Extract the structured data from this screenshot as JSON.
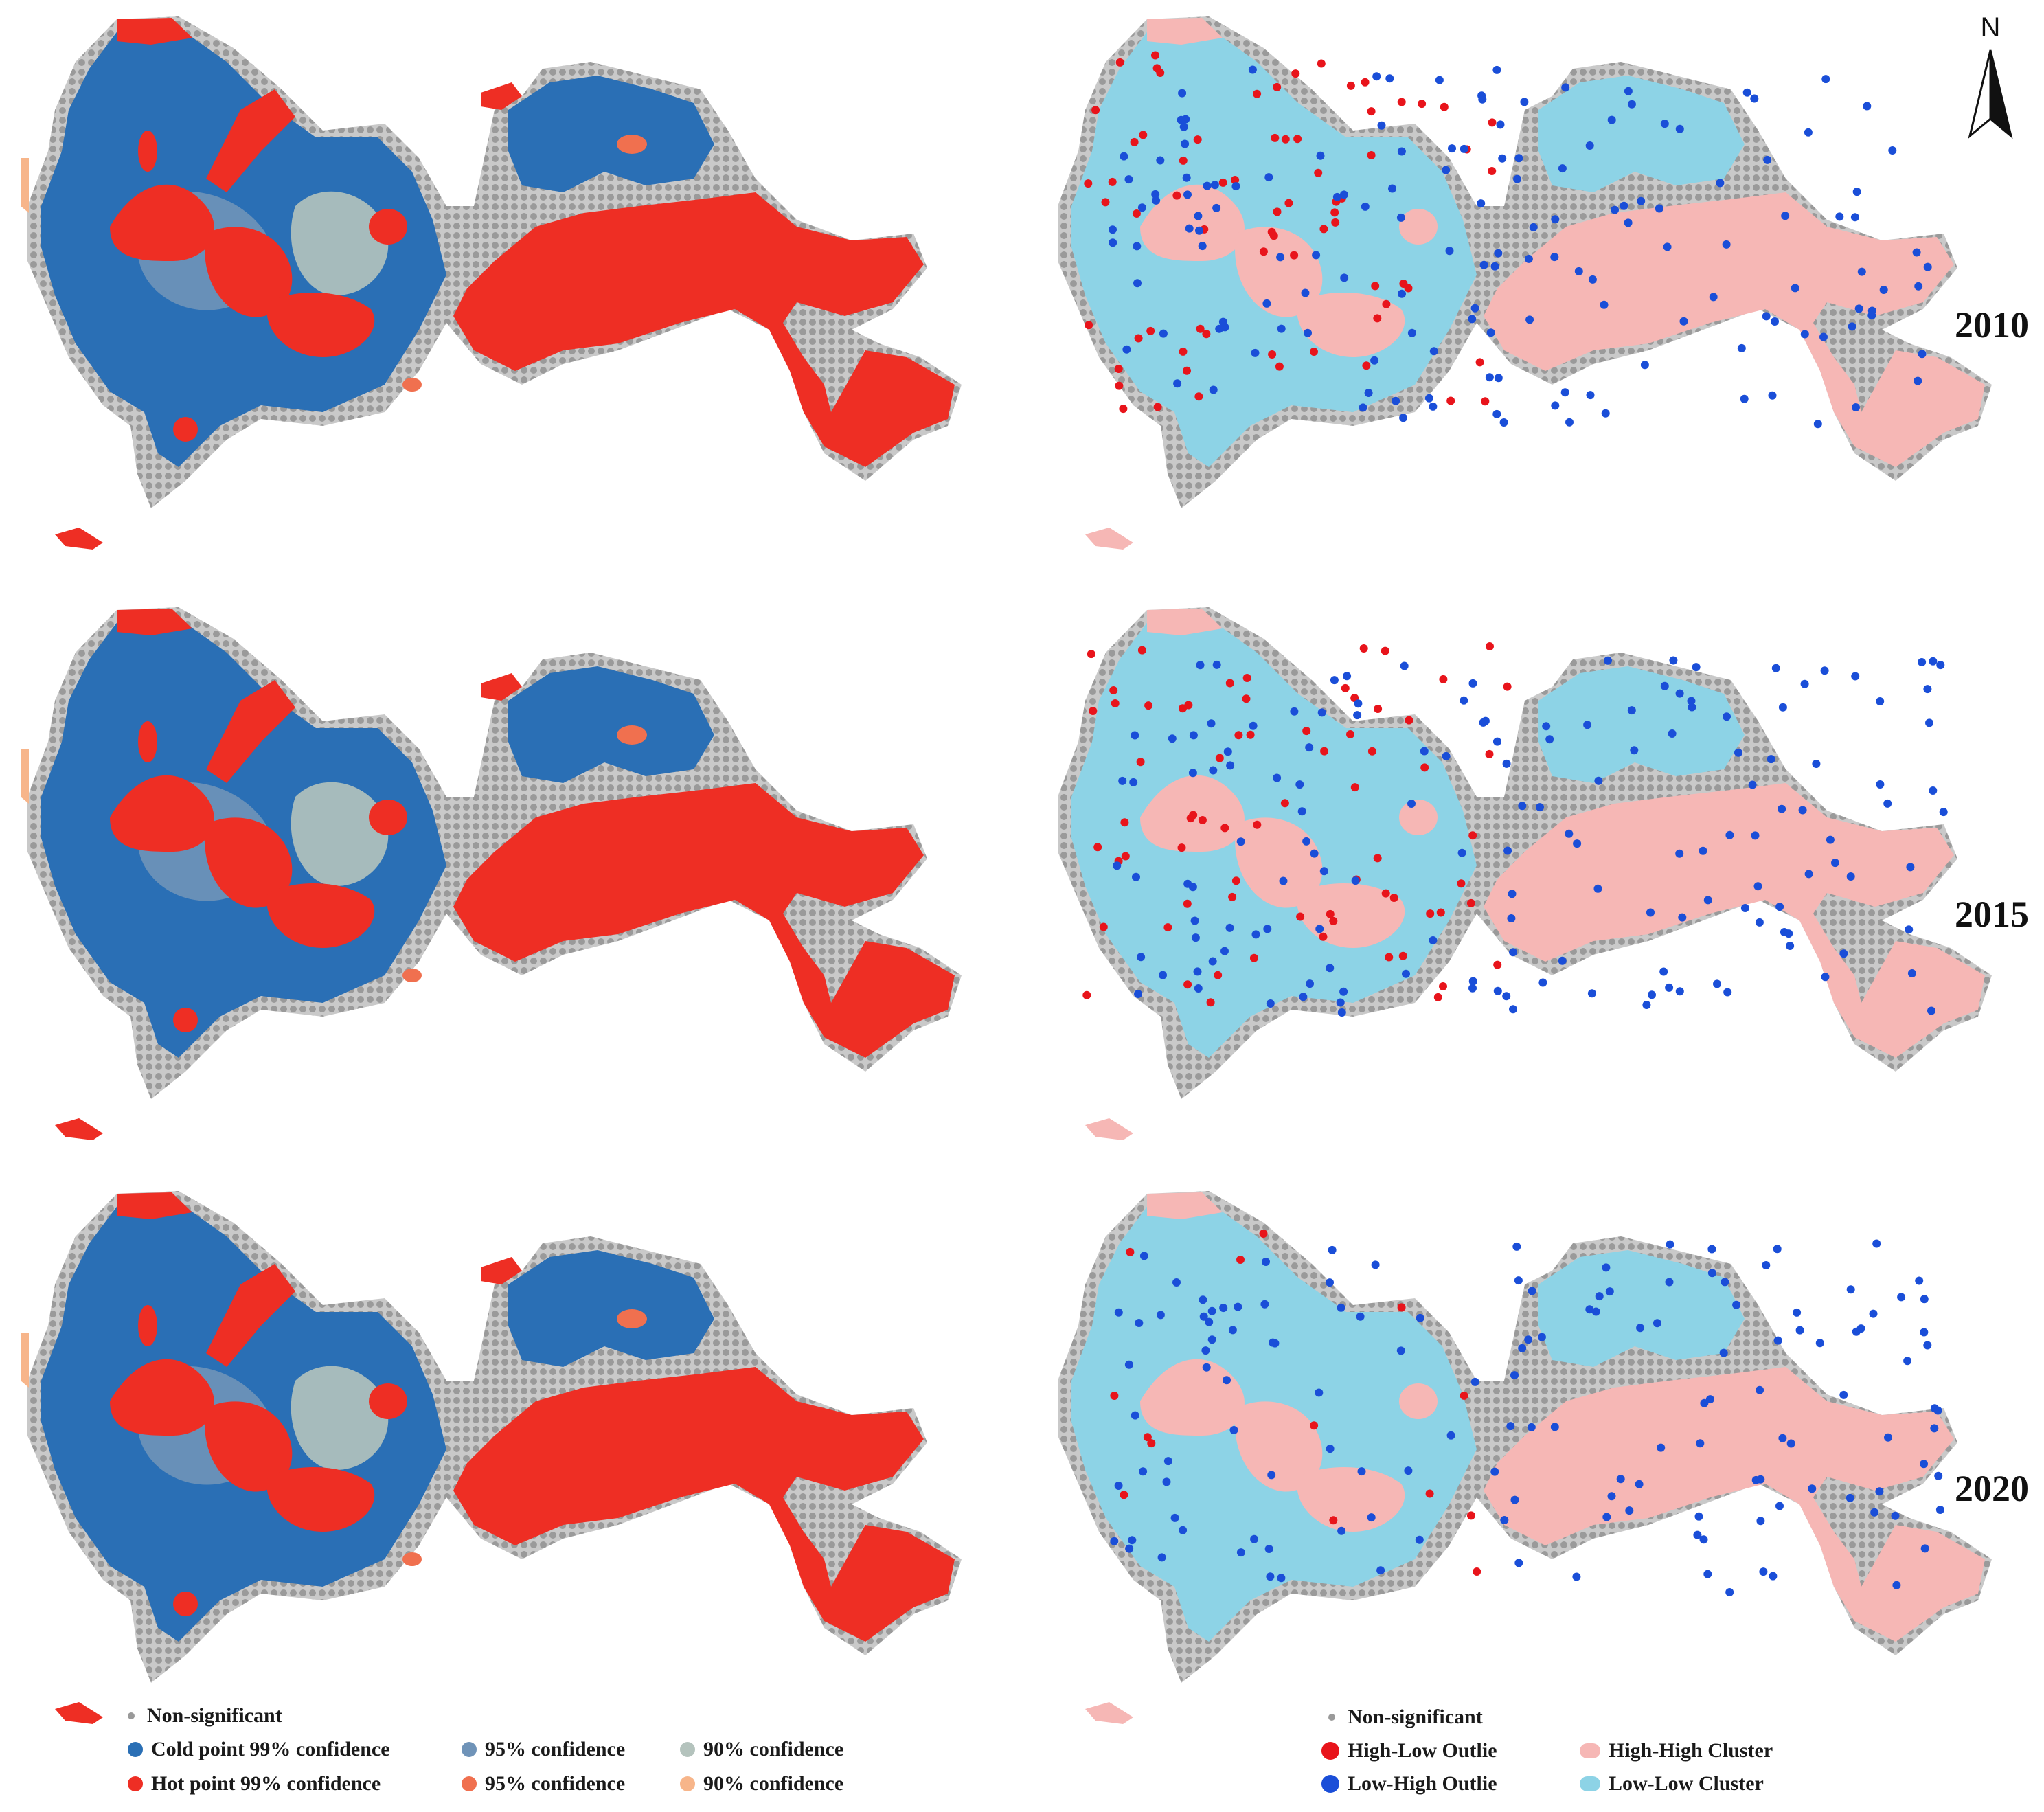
{
  "years": [
    "2010",
    "2015",
    "2020"
  ],
  "north_label": "N",
  "colors": {
    "non_significant": "#9a9a9a",
    "cold_99": "#2a6fb5",
    "cold_95": "#6f93b8",
    "cold_90": "#b4c3bd",
    "hot_99": "#ee2e24",
    "hot_95": "#f0704f",
    "hot_90": "#f7b58a",
    "high_low": "#e8141b",
    "low_high": "#1a4ed8",
    "high_high": "#f6b7b5",
    "low_low": "#8dd3e6"
  },
  "legend_left": {
    "non_significant": "Non-significant",
    "cold_99": "Cold point 99% confidence",
    "cold_95": "95% confidence",
    "cold_90": "90% confidence",
    "hot_99": "Hot point 99% confidence",
    "hot_95": "95% confidence",
    "hot_90": "90% confidence"
  },
  "legend_right": {
    "non_significant": "Non-significant",
    "high_low": "High-Low Outlie",
    "low_high": "Low-High Outlie",
    "high_high": "High-High Cluster",
    "low_low": "Low-Low Cluster"
  }
}
